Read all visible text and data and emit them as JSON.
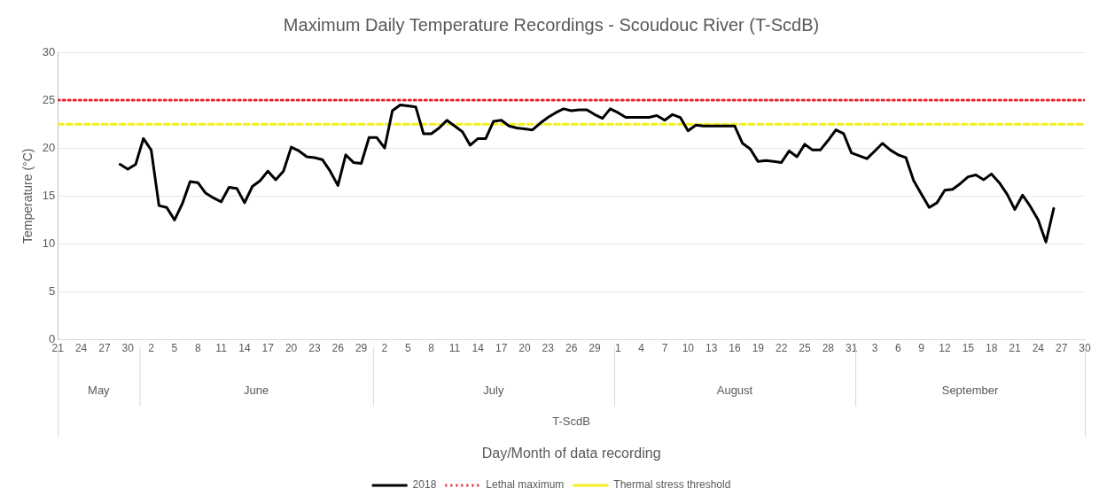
{
  "chart_data": {
    "type": "line",
    "title": "Maximum Daily Temperature Recordings - Scoudouc River (T-ScdB)",
    "ylabel": "Temperature (°C)",
    "xlim": [
      "--05-21",
      "--09-30"
    ],
    "xticks": [
      {
        "value": "--05-21",
        "label": "21"
      },
      {
        "value": "--05-24",
        "label": "24"
      },
      {
        "value": "--05-27",
        "label": "27"
      },
      {
        "value": "--05-30",
        "label": "30"
      },
      {
        "value": "--06-02",
        "label": "2"
      },
      {
        "value": "--06-05",
        "label": "5"
      },
      {
        "value": "--06-08",
        "label": "8"
      },
      {
        "value": "--06-11",
        "label": "11"
      },
      {
        "value": "--06-14",
        "label": "14"
      },
      {
        "value": "--06-17",
        "label": "17"
      },
      {
        "value": "--06-20",
        "label": "20"
      },
      {
        "value": "--06-23",
        "label": "23"
      },
      {
        "value": "--06-26",
        "label": "26"
      },
      {
        "value": "--06-29",
        "label": "29"
      },
      {
        "value": "--07-02",
        "label": "2"
      },
      {
        "value": "--07-05",
        "label": "5"
      },
      {
        "value": "--07-08",
        "label": "8"
      },
      {
        "value": "--07-11",
        "label": "11"
      },
      {
        "value": "--07-14",
        "label": "14"
      },
      {
        "value": "--07-17",
        "label": "17"
      },
      {
        "value": "--07-20",
        "label": "20"
      },
      {
        "value": "--07-23",
        "label": "23"
      },
      {
        "value": "--07-26",
        "label": "26"
      },
      {
        "value": "--07-29",
        "label": "29"
      },
      {
        "value": "--08-01",
        "label": "1"
      },
      {
        "value": "--08-04",
        "label": "4"
      },
      {
        "value": "--08-07",
        "label": "7"
      },
      {
        "value": "--08-10",
        "label": "10"
      },
      {
        "value": "--08-13",
        "label": "13"
      },
      {
        "value": "--08-16",
        "label": "16"
      },
      {
        "value": "--08-19",
        "label": "19"
      },
      {
        "value": "--08-22",
        "label": "22"
      },
      {
        "value": "--08-25",
        "label": "25"
      },
      {
        "value": "--08-28",
        "label": "28"
      },
      {
        "value": "--08-31",
        "label": "31"
      },
      {
        "value": "--09-03",
        "label": "3"
      },
      {
        "value": "--09-06",
        "label": "6"
      },
      {
        "value": "--09-09",
        "label": "9"
      },
      {
        "value": "--09-12",
        "label": "12"
      },
      {
        "value": "--09-15",
        "label": "15"
      },
      {
        "value": "--09-18",
        "label": "18"
      },
      {
        "value": "--09-21",
        "label": "21"
      },
      {
        "value": "--09-24",
        "label": "24"
      },
      {
        "value": "--09-27",
        "label": "27"
      },
      {
        "value": "--09-30",
        "label": "30"
      }
    ],
    "ylim": [
      0,
      30
    ],
    "yticks": [
      0,
      5,
      10,
      15,
      20,
      25,
      30
    ],
    "grid": "y",
    "legend": "bottom",
    "marker": "none",
    "line_style": "solid",
    "x": [
      "--05-29",
      "--05-30",
      "--05-31",
      "--06-01",
      "--06-02",
      "--06-03",
      "--06-04",
      "--06-05",
      "--06-06",
      "--06-07",
      "--06-08",
      "--06-09",
      "--06-10",
      "--06-11",
      "--06-12",
      "--06-13",
      "--06-14",
      "--06-15",
      "--06-16",
      "--06-17",
      "--06-18",
      "--06-19",
      "--06-20",
      "--06-21",
      "--06-22",
      "--06-23",
      "--06-24",
      "--06-25",
      "--06-26",
      "--06-27",
      "--06-28",
      "--06-29",
      "--06-30",
      "--07-01",
      "--07-02",
      "--07-03",
      "--07-04",
      "--07-05",
      "--07-06",
      "--07-07",
      "--07-08",
      "--07-09",
      "--07-10",
      "--07-11",
      "--07-12",
      "--07-13",
      "--07-14",
      "--07-15",
      "--07-16",
      "--07-17",
      "--07-18",
      "--07-19",
      "--07-20",
      "--07-21",
      "--07-22",
      "--07-23",
      "--07-24",
      "--07-25",
      "--07-26",
      "--07-27",
      "--07-28",
      "--07-29",
      "--07-30",
      "--07-31",
      "--08-01",
      "--08-02",
      "--08-03",
      "--08-04",
      "--08-05",
      "--08-06",
      "--08-07",
      "--08-08",
      "--08-09",
      "--08-10",
      "--08-11",
      "--08-12",
      "--08-13",
      "--08-14",
      "--08-15",
      "--08-16",
      "--08-17",
      "--08-18",
      "--08-19",
      "--08-20",
      "--08-21",
      "--08-22",
      "--08-23",
      "--08-24",
      "--08-25",
      "--08-26",
      "--08-27",
      "--08-28",
      "--08-29",
      "--08-30",
      "--08-31",
      "--09-01",
      "--09-02",
      "--09-03",
      "--09-04",
      "--09-05",
      "--09-06",
      "--09-07",
      "--09-08",
      "--09-09",
      "--09-10",
      "--09-11",
      "--09-12",
      "--09-13",
      "--09-14",
      "--09-15",
      "--09-16",
      "--09-17",
      "--09-18",
      "--09-19",
      "--09-20",
      "--09-21",
      "--09-22",
      "--09-23",
      "--09-24",
      "--09-25",
      "--09-26"
    ],
    "series": [
      {
        "name": "2018",
        "color": "#000000",
        "values": [
          18.3,
          17.8,
          18.3,
          21.0,
          19.8,
          14.0,
          13.8,
          12.5,
          14.2,
          16.5,
          16.4,
          15.3,
          14.8,
          14.4,
          15.9,
          15.8,
          14.3,
          16.0,
          16.6,
          17.6,
          16.7,
          17.6,
          20.1,
          19.7,
          19.1,
          19.0,
          18.8,
          17.6,
          16.1,
          19.3,
          18.5,
          18.4,
          21.1,
          21.1,
          20.0,
          23.9,
          24.5,
          24.4,
          24.3,
          21.5,
          21.5,
          22.1,
          22.9,
          22.3,
          21.7,
          20.3,
          21.0,
          21.0,
          22.8,
          22.9,
          22.3,
          22.1,
          22.0,
          21.9,
          22.6,
          23.2,
          23.7,
          24.1,
          23.9,
          24.0,
          24.0,
          23.5,
          23.1,
          24.1,
          23.7,
          23.2,
          23.2,
          23.2,
          23.2,
          23.4,
          22.9,
          23.5,
          23.2,
          21.8,
          22.4,
          22.3,
          22.3,
          22.3,
          22.3,
          22.3,
          20.5,
          19.9,
          18.6,
          18.7,
          18.6,
          18.5,
          19.7,
          19.1,
          20.4,
          19.8,
          19.8,
          20.8,
          21.9,
          21.5,
          19.5,
          19.2,
          18.9,
          19.7,
          20.5,
          19.8,
          19.3,
          19.0,
          16.6,
          15.2,
          13.8,
          14.3,
          15.6,
          15.7,
          16.3,
          17.0,
          17.2,
          16.7,
          17.3,
          16.4,
          15.2,
          13.6,
          15.1,
          13.9,
          12.5,
          10.2,
          13.7
        ]
      }
    ],
    "ref_lines": [
      {
        "axis": "y",
        "value": 25,
        "label": "Lethal maximum",
        "color": "#e8242c",
        "line_style": "dotted"
      },
      {
        "axis": "y",
        "value": 22.5,
        "label": "Thermal stress threshold",
        "color": "#f2f020",
        "line_style": "dashed"
      }
    ],
    "annotations": [
      "May",
      "June",
      "July",
      "August",
      "September",
      "T-ScdB",
      "Day/Month of data recording"
    ]
  }
}
